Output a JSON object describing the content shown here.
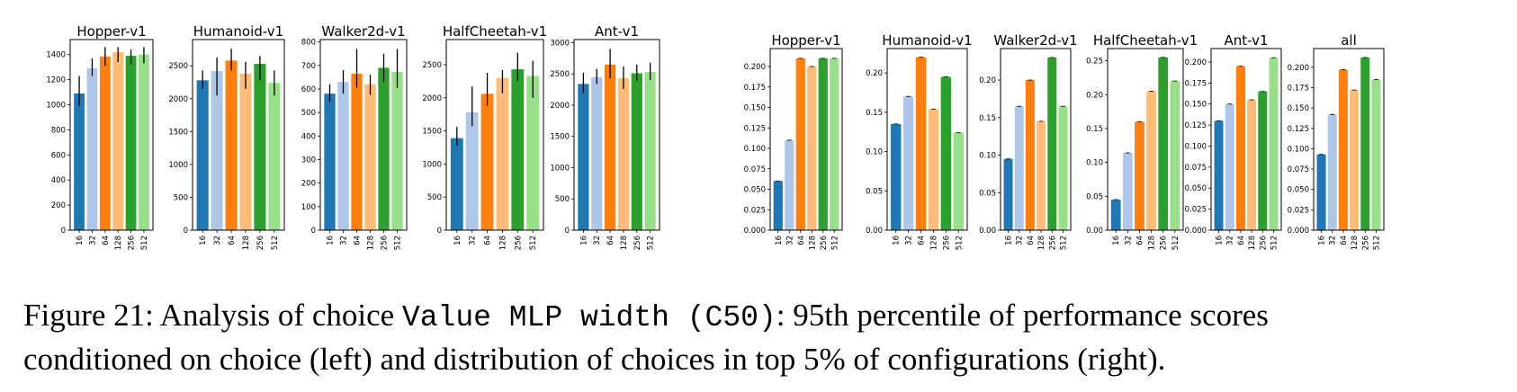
{
  "caption": {
    "line1_pre": "Figure 21: Analysis of choice ",
    "line1_code": "Value MLP width (C50)",
    "line1_post": ": 95th percentile of performance scores",
    "line2": "conditioned on choice (left) and distribution of choices in top 5% of configurations (right)."
  },
  "colors": [
    "#1f77b4",
    "#aec7e8",
    "#ff7f0e",
    "#ffbb78",
    "#2ca02c",
    "#98df8a"
  ],
  "chart_data": [
    {
      "type": "bar",
      "title": "Hopper-v1",
      "categories": [
        "16",
        "32",
        "64",
        "128",
        "256",
        "512"
      ],
      "values": [
        1090,
        1290,
        1385,
        1420,
        1390,
        1400
      ],
      "errors": [
        [
          990,
          1230
        ],
        [
          1230,
          1370
        ],
        [
          1310,
          1460
        ],
        [
          1340,
          1460
        ],
        [
          1320,
          1440
        ],
        [
          1330,
          1460
        ]
      ],
      "ylim": [
        0,
        1520
      ],
      "yticks": [
        0,
        200,
        400,
        600,
        800,
        1000,
        1200,
        1400
      ]
    },
    {
      "type": "bar",
      "title": "Humanoid-v1",
      "categories": [
        "16",
        "32",
        "64",
        "128",
        "256",
        "512"
      ],
      "values": [
        2280,
        2420,
        2580,
        2380,
        2530,
        2240
      ],
      "errors": [
        [
          2150,
          2430
        ],
        [
          2050,
          2630
        ],
        [
          2430,
          2760
        ],
        [
          2150,
          2560
        ],
        [
          2280,
          2650
        ],
        [
          2050,
          2430
        ]
      ],
      "ylim": [
        0,
        2900
      ],
      "yticks": [
        0,
        500,
        1000,
        1500,
        2000,
        2500
      ]
    },
    {
      "type": "bar",
      "title": "Walker2d-v1",
      "categories": [
        "16",
        "32",
        "64",
        "128",
        "256",
        "512"
      ],
      "values": [
        580,
        630,
        665,
        620,
        690,
        672
      ],
      "errors": [
        [
          545,
          620
        ],
        [
          580,
          680
        ],
        [
          605,
          770
        ],
        [
          575,
          660
        ],
        [
          630,
          750
        ],
        [
          605,
          770
        ]
      ],
      "ylim": [
        0,
        810
      ],
      "yticks": [
        0,
        100,
        200,
        300,
        400,
        500,
        600,
        700,
        800
      ]
    },
    {
      "type": "bar",
      "title": "HalfCheetah-v1",
      "categories": [
        "16",
        "32",
        "64",
        "128",
        "256",
        "512"
      ],
      "values": [
        1390,
        1780,
        2060,
        2300,
        2430,
        2330
      ],
      "errors": [
        [
          1280,
          1560
        ],
        [
          1570,
          2170
        ],
        [
          1880,
          2380
        ],
        [
          2070,
          2420
        ],
        [
          2250,
          2680
        ],
        [
          2000,
          2560
        ]
      ],
      "ylim": [
        0,
        2880
      ],
      "yticks": [
        0,
        500,
        1000,
        1500,
        2000,
        2500
      ]
    },
    {
      "type": "bar",
      "title": "Ant-v1",
      "categories": [
        "16",
        "32",
        "64",
        "128",
        "256",
        "512"
      ],
      "values": [
        2340,
        2450,
        2650,
        2430,
        2510,
        2530
      ],
      "errors": [
        [
          2200,
          2520
        ],
        [
          2340,
          2580
        ],
        [
          2430,
          2900
        ],
        [
          2260,
          2620
        ],
        [
          2390,
          2650
        ],
        [
          2400,
          2680
        ]
      ],
      "ylim": [
        0,
        3050
      ],
      "yticks": [
        0,
        500,
        1000,
        1500,
        2000,
        2500,
        3000
      ]
    },
    {
      "type": "bar",
      "title": "Hopper-v1",
      "categories": [
        "16",
        "32",
        "64",
        "128",
        "256",
        "512"
      ],
      "values": [
        0.06,
        0.11,
        0.21,
        0.2,
        0.21,
        0.21
      ],
      "ylim": [
        0,
        0.222
      ],
      "yticks": [
        0.0,
        0.025,
        0.05,
        0.075,
        0.1,
        0.125,
        0.15,
        0.175,
        0.2
      ],
      "ytick_labels": [
        "0.000",
        "0.025",
        "0.050",
        "0.075",
        "0.100",
        "0.125",
        "0.150",
        "0.175",
        "0.200"
      ]
    },
    {
      "type": "bar",
      "title": "Humanoid-v1",
      "categories": [
        "16",
        "32",
        "64",
        "128",
        "256",
        "512"
      ],
      "values": [
        0.135,
        0.17,
        0.22,
        0.154,
        0.195,
        0.124
      ],
      "ylim": [
        0,
        0.231
      ],
      "yticks": [
        0.0,
        0.05,
        0.1,
        0.15,
        0.2
      ],
      "ytick_labels": [
        "0.00",
        "0.05",
        "0.10",
        "0.15",
        "0.20"
      ]
    },
    {
      "type": "bar",
      "title": "Walker2d-v1",
      "categories": [
        "16",
        "32",
        "64",
        "128",
        "256",
        "512"
      ],
      "values": [
        0.095,
        0.165,
        0.2,
        0.145,
        0.23,
        0.165
      ],
      "ylim": [
        0,
        0.242
      ],
      "yticks": [
        0.0,
        0.05,
        0.1,
        0.15,
        0.2
      ],
      "ytick_labels": [
        "0.00",
        "0.05",
        "0.10",
        "0.15",
        "0.20"
      ]
    },
    {
      "type": "bar",
      "title": "HalfCheetah-v1",
      "categories": [
        "16",
        "32",
        "64",
        "128",
        "256",
        "512"
      ],
      "values": [
        0.045,
        0.114,
        0.16,
        0.205,
        0.255,
        0.22
      ],
      "ylim": [
        0,
        0.268
      ],
      "yticks": [
        0.0,
        0.05,
        0.1,
        0.15,
        0.2,
        0.25
      ],
      "ytick_labels": [
        "0.00",
        "0.05",
        "0.10",
        "0.15",
        "0.20",
        "0.25"
      ]
    },
    {
      "type": "bar",
      "title": "Ant-v1",
      "categories": [
        "16",
        "32",
        "64",
        "128",
        "256",
        "512"
      ],
      "values": [
        0.13,
        0.15,
        0.195,
        0.155,
        0.165,
        0.205
      ],
      "ylim": [
        0,
        0.216
      ],
      "yticks": [
        0.0,
        0.025,
        0.05,
        0.075,
        0.1,
        0.125,
        0.15,
        0.175,
        0.2
      ],
      "ytick_labels": [
        "0.000",
        "0.025",
        "0.050",
        "0.075",
        "0.100",
        "0.125",
        "0.150",
        "0.175",
        "0.200"
      ]
    },
    {
      "type": "bar",
      "title": "all",
      "categories": [
        "16",
        "32",
        "64",
        "128",
        "256",
        "512"
      ],
      "values": [
        0.093,
        0.142,
        0.197,
        0.172,
        0.212,
        0.185
      ],
      "ylim": [
        0,
        0.223
      ],
      "yticks": [
        0.0,
        0.025,
        0.05,
        0.075,
        0.1,
        0.125,
        0.15,
        0.175,
        0.2
      ],
      "ytick_labels": [
        "0.000",
        "0.025",
        "0.050",
        "0.075",
        "0.100",
        "0.125",
        "0.150",
        "0.175",
        "0.200"
      ]
    }
  ]
}
